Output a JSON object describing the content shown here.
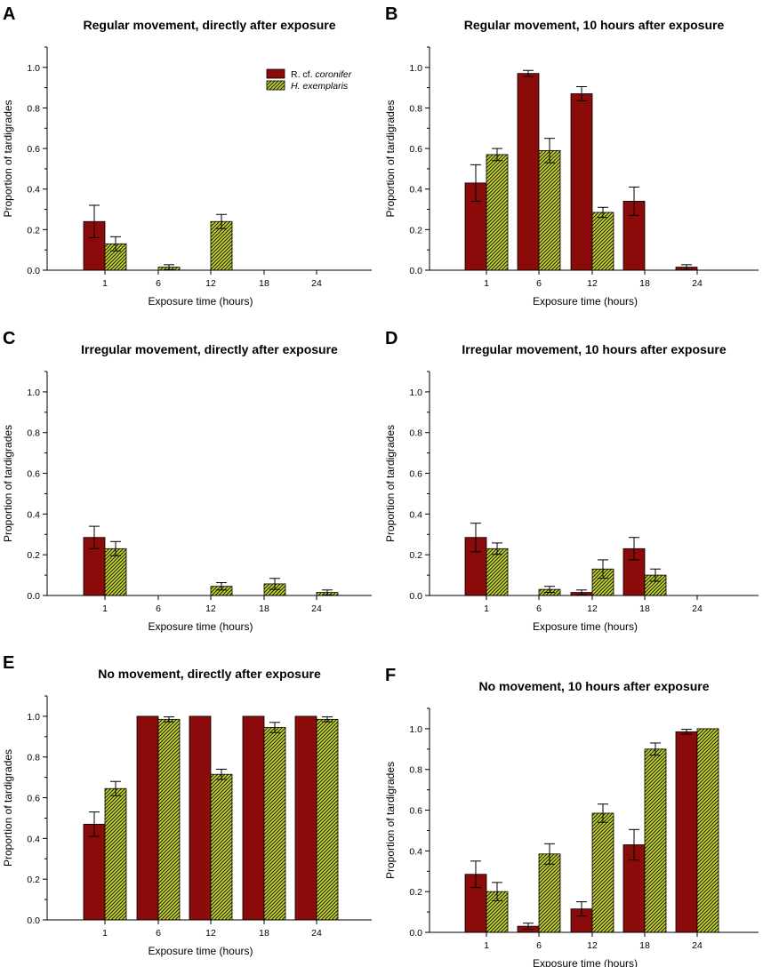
{
  "colors": {
    "r_coronifer": "#8b0a0a",
    "h_exemplaris": "#c8d828",
    "hatch": "#1e1e1e"
  },
  "legend": {
    "series1": {
      "prefix": "R. cf. ",
      "name": "coronifer"
    },
    "series2": {
      "name": "H. exemplaris"
    }
  },
  "chart_data": [
    {
      "type": "bar",
      "letter": "A",
      "title": "Regular movement, directly after exposure",
      "xlabel": "Exposure time (hours)",
      "ylabel": "Proportion of tardigrades",
      "categories": [
        "1",
        "6",
        "12",
        "18",
        "24"
      ],
      "ylim": [
        0,
        1.1
      ],
      "yticks": [
        "0.0",
        "0.2",
        "0.4",
        "0.6",
        "0.8",
        "1.0"
      ],
      "series": [
        {
          "name": "R. cf. coronifer",
          "values": [
            0.24,
            0,
            0,
            0,
            0
          ],
          "errors": [
            0.08,
            0,
            0,
            0,
            0
          ]
        },
        {
          "name": "H. exemplaris",
          "values": [
            0.13,
            0.015,
            0.24,
            0,
            0
          ],
          "errors": [
            0.035,
            0.012,
            0.035,
            0,
            0
          ]
        }
      ],
      "legend": "top-right"
    },
    {
      "type": "bar",
      "letter": "B",
      "title": "Regular movement, 10 hours after exposure",
      "xlabel": "Exposure time (hours)",
      "ylabel": "Proportion of tardigrades",
      "categories": [
        "1",
        "6",
        "12",
        "18",
        "24"
      ],
      "ylim": [
        0,
        1.1
      ],
      "yticks": [
        "0.0",
        "0.2",
        "0.4",
        "0.6",
        "0.8",
        "1.0"
      ],
      "series": [
        {
          "name": "R. cf. coronifer",
          "values": [
            0.43,
            0.97,
            0.87,
            0.34,
            0.015
          ],
          "errors": [
            0.09,
            0.015,
            0.035,
            0.07,
            0.012
          ]
        },
        {
          "name": "H. exemplaris",
          "values": [
            0.57,
            0.59,
            0.285,
            0,
            0
          ],
          "errors": [
            0.03,
            0.06,
            0.025,
            0,
            0
          ]
        }
      ]
    },
    {
      "type": "bar",
      "letter": "C",
      "title": "Irregular movement, directly after exposure",
      "xlabel": "Exposure time (hours)",
      "ylabel": "Proportion of tardigrades",
      "categories": [
        "1",
        "6",
        "12",
        "18",
        "24"
      ],
      "ylim": [
        0,
        1.1
      ],
      "yticks": [
        "0.0",
        "0.2",
        "0.4",
        "0.6",
        "0.8",
        "1.0"
      ],
      "series": [
        {
          "name": "R. cf. coronifer",
          "values": [
            0.285,
            0,
            0,
            0,
            0
          ],
          "errors": [
            0.055,
            0,
            0,
            0,
            0
          ]
        },
        {
          "name": "H. exemplaris",
          "values": [
            0.23,
            0,
            0.045,
            0.057,
            0.015
          ],
          "errors": [
            0.035,
            0,
            0.018,
            0.027,
            0.012
          ]
        }
      ]
    },
    {
      "type": "bar",
      "letter": "D",
      "title": "Irregular movement, 10 hours after exposure",
      "xlabel": "Exposure time (hours)",
      "ylabel": "Proportion of tardigrades",
      "categories": [
        "1",
        "6",
        "12",
        "18",
        "24"
      ],
      "ylim": [
        0,
        1.1
      ],
      "yticks": [
        "0.0",
        "0.2",
        "0.4",
        "0.6",
        "0.8",
        "1.0"
      ],
      "series": [
        {
          "name": "R. cf. coronifer",
          "values": [
            0.285,
            0,
            0.015,
            0.23,
            0
          ],
          "errors": [
            0.07,
            0,
            0.012,
            0.055,
            0
          ]
        },
        {
          "name": "H. exemplaris",
          "values": [
            0.23,
            0.03,
            0.13,
            0.1,
            0
          ],
          "errors": [
            0.028,
            0.015,
            0.045,
            0.03,
            0
          ]
        }
      ]
    },
    {
      "type": "bar",
      "letter": "E",
      "title": "No movement, directly after exposure",
      "xlabel": "Exposure time (hours)",
      "ylabel": "Proportion of tardigrades",
      "categories": [
        "1",
        "6",
        "12",
        "18",
        "24"
      ],
      "ylim": [
        0,
        1.1
      ],
      "yticks": [
        "0.0",
        "0.2",
        "0.4",
        "0.6",
        "0.8",
        "1.0"
      ],
      "series": [
        {
          "name": "R. cf. coronifer",
          "values": [
            0.47,
            1.0,
            1.0,
            1.0,
            1.0
          ],
          "errors": [
            0.06,
            0,
            0,
            0,
            0
          ]
        },
        {
          "name": "H. exemplaris",
          "values": [
            0.645,
            0.985,
            0.715,
            0.945,
            0.985
          ],
          "errors": [
            0.035,
            0.012,
            0.025,
            0.025,
            0.012
          ]
        }
      ]
    },
    {
      "type": "bar",
      "letter": "F",
      "title": "No movement, 10 hours after exposure",
      "xlabel": "Exposure time (hours)",
      "ylabel": "Proportion of tardigrades",
      "categories": [
        "1",
        "6",
        "12",
        "18",
        "24"
      ],
      "ylim": [
        0,
        1.1
      ],
      "yticks": [
        "0.0",
        "0.2",
        "0.4",
        "0.6",
        "0.8",
        "1.0"
      ],
      "series": [
        {
          "name": "R. cf. coronifer",
          "values": [
            0.285,
            0.03,
            0.115,
            0.43,
            0.985
          ],
          "errors": [
            0.065,
            0.015,
            0.035,
            0.075,
            0.012
          ]
        },
        {
          "name": "H. exemplaris",
          "values": [
            0.2,
            0.385,
            0.585,
            0.9,
            1.0
          ],
          "errors": [
            0.045,
            0.05,
            0.045,
            0.03,
            0
          ]
        }
      ]
    }
  ]
}
